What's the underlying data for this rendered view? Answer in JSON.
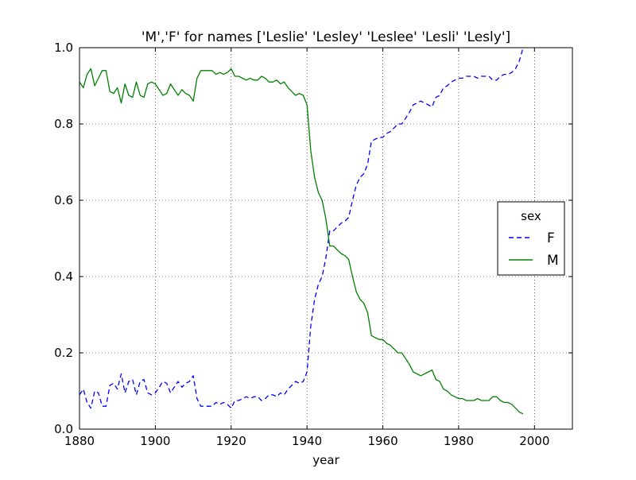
{
  "chart_data": {
    "type": "line",
    "title": "'M','F' for names ['Leslie' 'Lesley' 'Leslee' 'Lesli' 'Lesly']",
    "xlabel": "year",
    "ylabel": "",
    "xlim": [
      1880,
      2010
    ],
    "ylim": [
      0.0,
      1.0
    ],
    "xticks": [
      1880,
      1900,
      1920,
      1940,
      1960,
      1980,
      2000
    ],
    "yticks": [
      0.0,
      0.2,
      0.4,
      0.6,
      0.8,
      1.0
    ],
    "xtick_labels": [
      "1880",
      "1900",
      "1920",
      "1940",
      "1960",
      "1980",
      "2000"
    ],
    "ytick_labels": [
      "0.0",
      "0.2",
      "0.4",
      "0.6",
      "0.8",
      "1.0"
    ],
    "grid": true,
    "legend": {
      "title": "sex",
      "position": "center-right"
    },
    "series": [
      {
        "name": "F",
        "color": "#0000ff",
        "style": "dashed",
        "x": [
          1880,
          1881,
          1882,
          1883,
          1884,
          1885,
          1886,
          1887,
          1888,
          1889,
          1890,
          1891,
          1892,
          1893,
          1894,
          1895,
          1896,
          1897,
          1898,
          1899,
          1900,
          1901,
          1902,
          1903,
          1904,
          1905,
          1906,
          1907,
          1908,
          1909,
          1910,
          1911,
          1912,
          1913,
          1914,
          1915,
          1916,
          1917,
          1918,
          1919,
          1920,
          1921,
          1922,
          1923,
          1924,
          1925,
          1926,
          1927,
          1928,
          1929,
          1930,
          1931,
          1932,
          1933,
          1934,
          1935,
          1936,
          1937,
          1938,
          1939,
          1940,
          1941,
          1942,
          1943,
          1944,
          1945,
          1946,
          1947,
          1948,
          1949,
          1950,
          1951,
          1952,
          1953,
          1954,
          1955,
          1956,
          1957,
          1958,
          1959,
          1960,
          1961,
          1962,
          1963,
          1964,
          1965,
          1966,
          1967,
          1968,
          1969,
          1970,
          1971,
          1972,
          1973,
          1974,
          1975,
          1976,
          1977,
          1978,
          1979,
          1980,
          1981,
          1982,
          1983,
          1984,
          1985,
          1986,
          1987,
          1988,
          1989,
          1990,
          1991,
          1992,
          1993,
          1994,
          1995,
          1996,
          1997
        ],
        "values": [
          0.09,
          0.105,
          0.07,
          0.055,
          0.1,
          0.095,
          0.06,
          0.06,
          0.115,
          0.12,
          0.105,
          0.145,
          0.095,
          0.125,
          0.13,
          0.09,
          0.125,
          0.13,
          0.095,
          0.09,
          0.095,
          0.11,
          0.125,
          0.12,
          0.095,
          0.11,
          0.125,
          0.11,
          0.12,
          0.125,
          0.14,
          0.08,
          0.06,
          0.06,
          0.06,
          0.06,
          0.07,
          0.065,
          0.07,
          0.065,
          0.055,
          0.075,
          0.075,
          0.08,
          0.085,
          0.08,
          0.085,
          0.085,
          0.075,
          0.08,
          0.09,
          0.09,
          0.085,
          0.095,
          0.09,
          0.105,
          0.115,
          0.125,
          0.12,
          0.125,
          0.15,
          0.27,
          0.34,
          0.38,
          0.4,
          0.45,
          0.52,
          0.52,
          0.53,
          0.54,
          0.545,
          0.555,
          0.6,
          0.64,
          0.66,
          0.67,
          0.695,
          0.755,
          0.76,
          0.765,
          0.765,
          0.775,
          0.78,
          0.79,
          0.8,
          0.8,
          0.815,
          0.83,
          0.85,
          0.855,
          0.86,
          0.855,
          0.85,
          0.845,
          0.87,
          0.875,
          0.895,
          0.9,
          0.91,
          0.915,
          0.92,
          0.92,
          0.925,
          0.925,
          0.925,
          0.92,
          0.925,
          0.925,
          0.925,
          0.915,
          0.915,
          0.925,
          0.93,
          0.93,
          0.935,
          0.945,
          0.965,
          1.0
        ]
      },
      {
        "name": "M",
        "color": "#008000",
        "style": "solid",
        "x": [
          1880,
          1881,
          1882,
          1883,
          1884,
          1885,
          1886,
          1887,
          1888,
          1889,
          1890,
          1891,
          1892,
          1893,
          1894,
          1895,
          1896,
          1897,
          1898,
          1899,
          1900,
          1901,
          1902,
          1903,
          1904,
          1905,
          1906,
          1907,
          1908,
          1909,
          1910,
          1911,
          1912,
          1913,
          1914,
          1915,
          1916,
          1917,
          1918,
          1919,
          1920,
          1921,
          1922,
          1923,
          1924,
          1925,
          1926,
          1927,
          1928,
          1929,
          1930,
          1931,
          1932,
          1933,
          1934,
          1935,
          1936,
          1937,
          1938,
          1939,
          1940,
          1941,
          1942,
          1943,
          1944,
          1945,
          1946,
          1947,
          1948,
          1949,
          1950,
          1951,
          1952,
          1953,
          1954,
          1955,
          1956,
          1957,
          1958,
          1959,
          1960,
          1961,
          1962,
          1963,
          1964,
          1965,
          1966,
          1967,
          1968,
          1969,
          1970,
          1971,
          1972,
          1973,
          1974,
          1975,
          1976,
          1977,
          1978,
          1979,
          1980,
          1981,
          1982,
          1983,
          1984,
          1985,
          1986,
          1987,
          1988,
          1989,
          1990,
          1991,
          1992,
          1993,
          1994,
          1995,
          1996,
          1997
        ],
        "values": [
          0.91,
          0.895,
          0.93,
          0.945,
          0.9,
          0.92,
          0.94,
          0.94,
          0.885,
          0.88,
          0.895,
          0.855,
          0.905,
          0.875,
          0.87,
          0.91,
          0.875,
          0.87,
          0.905,
          0.91,
          0.905,
          0.89,
          0.875,
          0.88,
          0.905,
          0.89,
          0.875,
          0.89,
          0.88,
          0.875,
          0.86,
          0.92,
          0.94,
          0.94,
          0.94,
          0.94,
          0.93,
          0.935,
          0.93,
          0.935,
          0.945,
          0.925,
          0.925,
          0.92,
          0.915,
          0.92,
          0.915,
          0.915,
          0.925,
          0.92,
          0.91,
          0.91,
          0.915,
          0.905,
          0.91,
          0.895,
          0.885,
          0.875,
          0.88,
          0.875,
          0.85,
          0.73,
          0.66,
          0.62,
          0.6,
          0.55,
          0.48,
          0.48,
          0.47,
          0.46,
          0.455,
          0.445,
          0.4,
          0.36,
          0.34,
          0.33,
          0.305,
          0.245,
          0.24,
          0.235,
          0.235,
          0.225,
          0.22,
          0.21,
          0.2,
          0.2,
          0.185,
          0.17,
          0.15,
          0.145,
          0.14,
          0.145,
          0.15,
          0.155,
          0.13,
          0.125,
          0.105,
          0.1,
          0.09,
          0.085,
          0.08,
          0.08,
          0.075,
          0.075,
          0.075,
          0.08,
          0.075,
          0.075,
          0.075,
          0.085,
          0.085,
          0.075,
          0.07,
          0.07,
          0.065,
          0.055,
          0.045,
          0.04
        ]
      }
    ]
  }
}
